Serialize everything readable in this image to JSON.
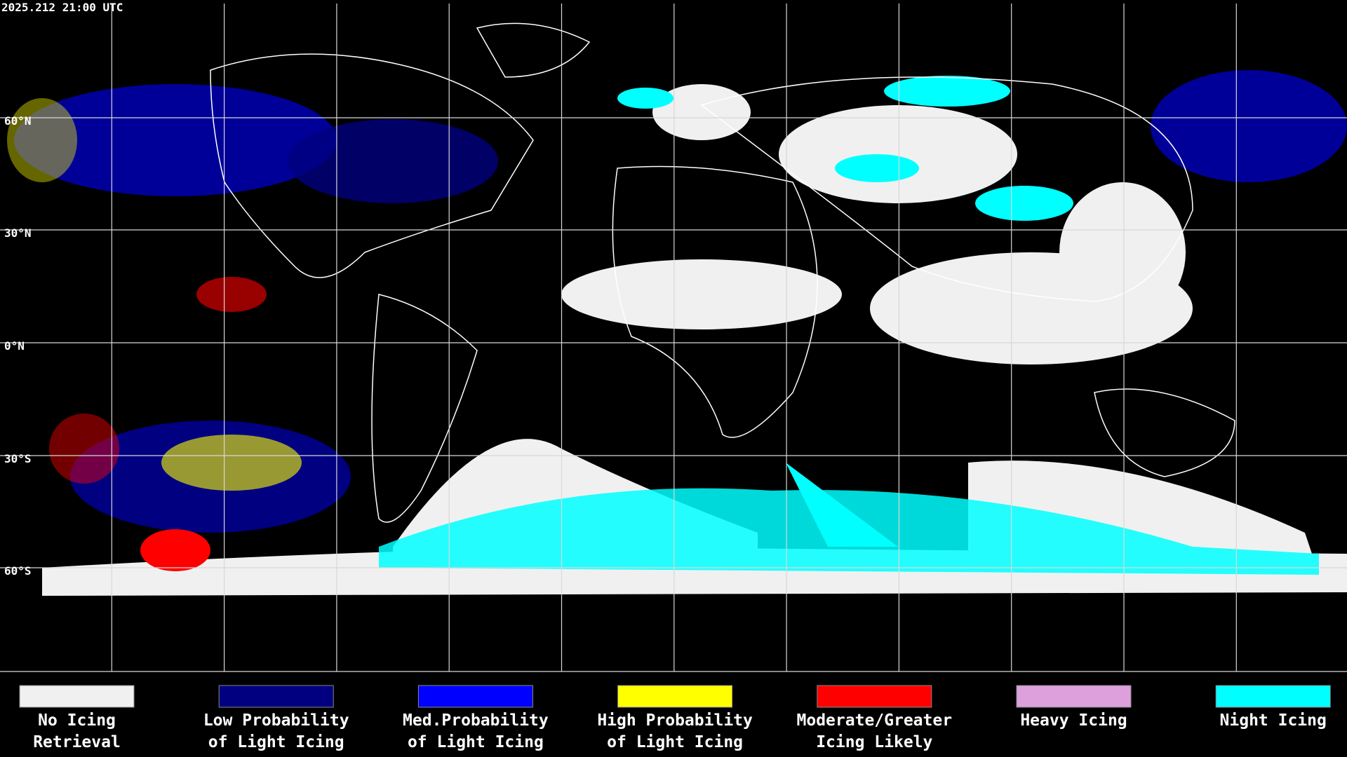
{
  "header": {
    "timestamp": "2025.212 21:00 UTC"
  },
  "map": {
    "latitude_labels": [
      "60°N",
      "30°N",
      "0°N",
      "30°S",
      "60°S"
    ]
  },
  "legend": {
    "items": [
      {
        "line1": "No Icing",
        "line2": "Retrieval",
        "color": "#f0f0f0"
      },
      {
        "line1": "Low Probability",
        "line2": "of Light Icing",
        "color": "#000080"
      },
      {
        "line1": "Med.Probability",
        "line2": "of Light Icing",
        "color": "#0000ff"
      },
      {
        "line1": "High Probability",
        "line2": "of Light Icing",
        "color": "#ffff00"
      },
      {
        "line1": "Moderate/Greater",
        "line2": "Icing Likely",
        "color": "#ff0000"
      },
      {
        "line1": "Heavy Icing",
        "line2": "",
        "color": "#dda0dd"
      },
      {
        "line1": "Night Icing",
        "line2": "",
        "color": "#00ffff"
      }
    ]
  }
}
